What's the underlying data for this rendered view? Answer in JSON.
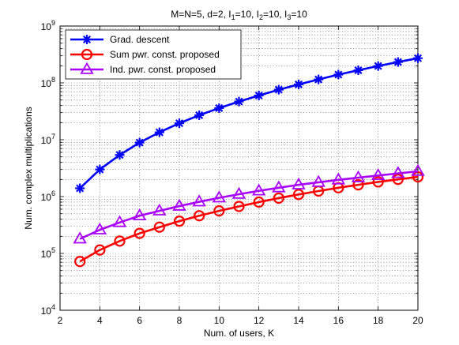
{
  "chart_data": {
    "type": "line",
    "title": "M=N=5, d=2, I1=10, I2=10, I3=10",
    "title_parts": [
      {
        "text": "M=N=5, d=2, I"
      },
      {
        "sub": "1"
      },
      {
        "text": "=10, I"
      },
      {
        "sub": "2"
      },
      {
        "text": "=10, I"
      },
      {
        "sub": "3"
      },
      {
        "text": "=10"
      }
    ],
    "xlabel": "Num. of users, K",
    "ylabel": "Num. complex multiplications",
    "xlim": [
      2,
      20
    ],
    "ylim": [
      10000,
      1000000000
    ],
    "yscale": "log",
    "grid": true,
    "legend_position": "top-left",
    "x_ticks": [
      2,
      4,
      6,
      8,
      10,
      12,
      14,
      16,
      18,
      20
    ],
    "y_ticks": [
      {
        "value": 10000,
        "base": "10",
        "exp": "4"
      },
      {
        "value": 100000,
        "base": "10",
        "exp": "5"
      },
      {
        "value": 1000000,
        "base": "10",
        "exp": "6"
      },
      {
        "value": 10000000,
        "base": "10",
        "exp": "7"
      },
      {
        "value": 100000000,
        "base": "10",
        "exp": "8"
      },
      {
        "value": 1000000000,
        "base": "10",
        "exp": "9"
      }
    ],
    "x": [
      3,
      4,
      5,
      6,
      7,
      8,
      9,
      10,
      11,
      12,
      13,
      14,
      15,
      16,
      17,
      18,
      19,
      20
    ],
    "series": [
      {
        "name": "Grad. descent",
        "color": "#0000ff",
        "marker": "asterisk",
        "values": [
          1400000,
          3000000,
          5400000,
          8900000,
          13500000,
          19500000,
          27000000,
          36000000,
          47000000,
          60000000,
          76000000,
          94000000,
          115000000,
          140000000,
          167000000,
          198000000,
          233000000,
          272000000
        ]
      },
      {
        "name": "Sum pwr. const. proposed",
        "color": "#ff0000",
        "marker": "circle",
        "values": [
          72000,
          115000,
          165000,
          225000,
          290000,
          370000,
          460000,
          560000,
          670000,
          800000,
          940000,
          1090000,
          1250000,
          1430000,
          1610000,
          1810000,
          2010000,
          2220000
        ]
      },
      {
        "name": "Ind. pwr. const. proposed",
        "color": "#aa00ff",
        "marker": "triangle",
        "values": [
          180000,
          260000,
          350000,
          460000,
          560000,
          680000,
          810000,
          950000,
          1100000,
          1260000,
          1430000,
          1610000,
          1780000,
          1970000,
          2150000,
          2350000,
          2560000,
          2780000
        ]
      }
    ]
  }
}
